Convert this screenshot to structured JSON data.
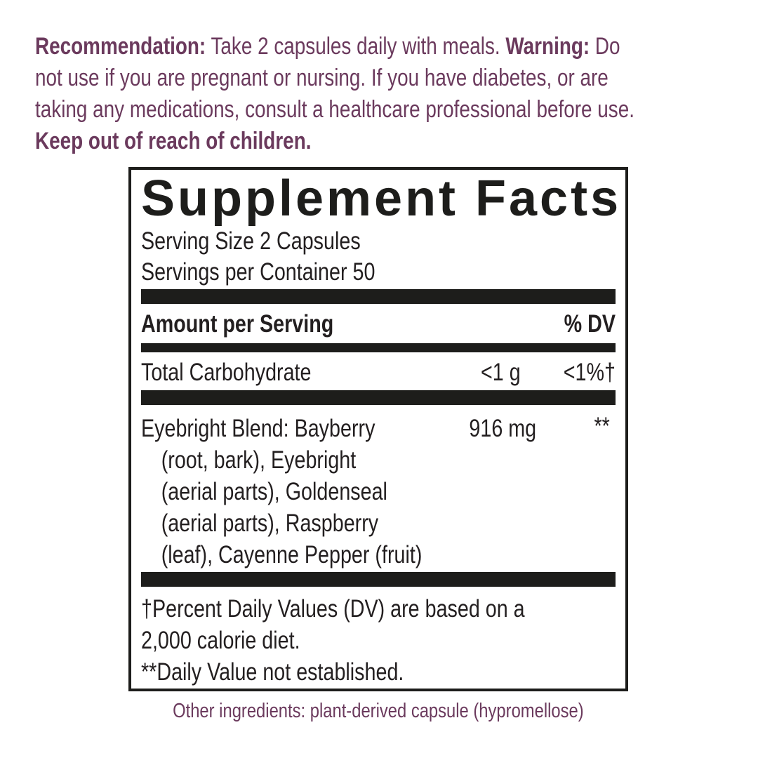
{
  "colors": {
    "accent_purple": "#6b3a5d",
    "ink_black": "#231f20",
    "bar_black": "#1d1d1b"
  },
  "recommendation": {
    "label": "Recommendation:",
    "line1_text": " Take 2 capsules daily with meals. ",
    "warning_label": "Warning:",
    "line1_tail": " Do",
    "line2": "not use if you are pregnant or nursing. If you have diabetes, or are",
    "line3": "taking any medications, consult a healthcare professional before use.",
    "keep_out": "Keep out of reach of children."
  },
  "panel": {
    "title": "Supplement Facts",
    "serving_size": "Serving Size 2 Capsules",
    "servings_per_container": "Servings per Container 50",
    "columns": {
      "amount_label": "Amount per Serving",
      "dv_label": "% DV"
    },
    "rows": [
      {
        "name": "Total Carbohydrate",
        "amount": "<1 g",
        "dv": "<1%†"
      },
      {
        "name": "Eyebright Blend: Bayberry",
        "amount": "916 mg",
        "dv": "**",
        "continuation": [
          "(root, bark), Eyebright",
          "(aerial parts), Goldenseal",
          "(aerial parts), Raspberry",
          "(leaf), Cayenne Pepper (fruit)"
        ]
      }
    ],
    "footnote_lines": [
      "†Percent Daily Values (DV) are based on a",
      "2,000 calorie diet.",
      "**Daily Value not established."
    ]
  },
  "other_ingredients": "Other ingredients: plant-derived capsule (hypromellose)"
}
